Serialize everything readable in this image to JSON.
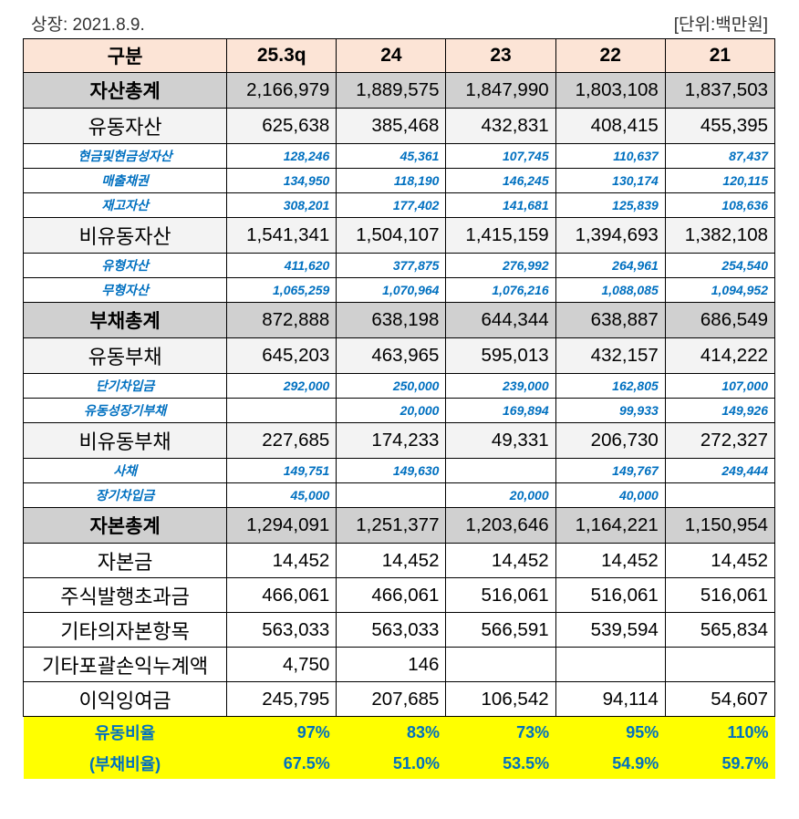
{
  "header": {
    "listing": "상장: 2021.8.9.",
    "unit": "[단위:백만원]"
  },
  "columns": [
    "구분",
    "25.3q",
    "24",
    "23",
    "22",
    "21"
  ],
  "rows": [
    {
      "type": "total",
      "label": "자산총계",
      "values": [
        "2,166,979",
        "1,889,575",
        "1,847,990",
        "1,803,108",
        "1,837,503"
      ]
    },
    {
      "type": "major",
      "label": "유동자산",
      "values": [
        "625,638",
        "385,468",
        "432,831",
        "408,415",
        "455,395"
      ]
    },
    {
      "type": "minor",
      "label": "현금및현금성자산",
      "values": [
        "128,246",
        "45,361",
        "107,745",
        "110,637",
        "87,437"
      ]
    },
    {
      "type": "minor",
      "label": "매출채권",
      "values": [
        "134,950",
        "118,190",
        "146,245",
        "130,174",
        "120,115"
      ]
    },
    {
      "type": "minor",
      "label": "재고자산",
      "values": [
        "308,201",
        "177,402",
        "141,681",
        "125,839",
        "108,636"
      ]
    },
    {
      "type": "major",
      "label": "비유동자산",
      "values": [
        "1,541,341",
        "1,504,107",
        "1,415,159",
        "1,394,693",
        "1,382,108"
      ]
    },
    {
      "type": "minor",
      "label": "유형자산",
      "values": [
        "411,620",
        "377,875",
        "276,992",
        "264,961",
        "254,540"
      ]
    },
    {
      "type": "minor",
      "label": "무형자산",
      "values": [
        "1,065,259",
        "1,070,964",
        "1,076,216",
        "1,088,085",
        "1,094,952"
      ]
    },
    {
      "type": "total",
      "label": "부채총계",
      "values": [
        "872,888",
        "638,198",
        "644,344",
        "638,887",
        "686,549"
      ]
    },
    {
      "type": "major",
      "label": "유동부채",
      "values": [
        "645,203",
        "463,965",
        "595,013",
        "432,157",
        "414,222"
      ]
    },
    {
      "type": "minor",
      "label": "단기차입금",
      "values": [
        "292,000",
        "250,000",
        "239,000",
        "162,805",
        "107,000"
      ]
    },
    {
      "type": "minor",
      "label": "유동성장기부채",
      "values": [
        "",
        "20,000",
        "169,894",
        "99,933",
        "149,926"
      ]
    },
    {
      "type": "major",
      "label": "비유동부채",
      "values": [
        "227,685",
        "174,233",
        "49,331",
        "206,730",
        "272,327"
      ]
    },
    {
      "type": "minor",
      "label": "사채",
      "values": [
        "149,751",
        "149,630",
        "",
        "149,767",
        "249,444"
      ]
    },
    {
      "type": "minor",
      "label": "장기차입금",
      "values": [
        "45,000",
        "",
        "20,000",
        "40,000",
        ""
      ]
    },
    {
      "type": "total",
      "label": "자본총계",
      "values": [
        "1,294,091",
        "1,251,377",
        "1,203,646",
        "1,164,221",
        "1,150,954"
      ]
    },
    {
      "type": "equity",
      "label": "자본금",
      "values": [
        "14,452",
        "14,452",
        "14,452",
        "14,452",
        "14,452"
      ]
    },
    {
      "type": "equity",
      "label": "주식발행초과금",
      "values": [
        "466,061",
        "466,061",
        "516,061",
        "516,061",
        "516,061"
      ]
    },
    {
      "type": "equity",
      "label": "기타의자본항목",
      "values": [
        "563,033",
        "563,033",
        "566,591",
        "539,594",
        "565,834"
      ]
    },
    {
      "type": "equity",
      "label": "기타포괄손익누계액",
      "values": [
        "4,750",
        "146",
        "",
        "",
        ""
      ]
    },
    {
      "type": "equity",
      "label": "이익잉여금",
      "values": [
        "245,795",
        "207,685",
        "106,542",
        "94,114",
        "54,607"
      ]
    },
    {
      "type": "ratio",
      "label": "유동비율",
      "values": [
        "97%",
        "83%",
        "73%",
        "95%",
        "110%"
      ]
    },
    {
      "type": "ratio",
      "label": "(부채비율)",
      "values": [
        "67.5%",
        "51.0%",
        "53.5%",
        "54.9%",
        "59.7%"
      ]
    }
  ]
}
